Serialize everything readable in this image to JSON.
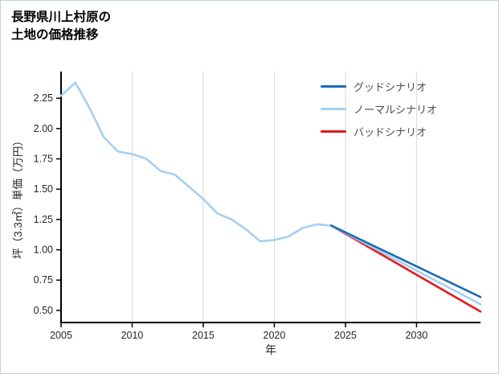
{
  "title": {
    "line1": "長野県川上村原の",
    "line2": "土地の価格推移"
  },
  "chart_data": {
    "type": "line",
    "title": "長野県川上村原の土地の価格推移",
    "xlabel": "年",
    "ylabel": "坪（3.3㎡）単価（万円）",
    "xlim": [
      2005,
      2034.5
    ],
    "ylim": [
      0.4,
      2.47
    ],
    "x_ticks": [
      2005,
      2010,
      2015,
      2020,
      2025,
      2030
    ],
    "y_ticks": [
      0.5,
      0.75,
      1.0,
      1.25,
      1.5,
      1.75,
      2.0,
      2.25
    ],
    "grid": "vertical-only",
    "legend_position": "top-right-inside",
    "colors": {
      "axis": "#000000",
      "grid": "#d9d9d9",
      "tick_label": "#262626",
      "legend_text": "#4d4d4d"
    },
    "series": [
      {
        "name": "グッドシナリオ",
        "color": "#1a6db5",
        "x": [
          2024,
          2034.5
        ],
        "y": [
          1.2,
          0.61
        ]
      },
      {
        "name": "ノーマルシナリオ",
        "color": "#a6cff2",
        "x": [
          2005,
          2006,
          2007,
          2008,
          2009,
          2010,
          2011,
          2012,
          2013,
          2014,
          2015,
          2016,
          2017,
          2018,
          2019,
          2020,
          2021,
          2022,
          2023,
          2024,
          2034.5
        ],
        "y": [
          2.27,
          2.38,
          2.17,
          1.93,
          1.81,
          1.79,
          1.75,
          1.65,
          1.62,
          1.52,
          1.42,
          1.3,
          1.25,
          1.17,
          1.07,
          1.08,
          1.11,
          1.18,
          1.21,
          1.2,
          0.55
        ]
      },
      {
        "name": "バッドシナリオ",
        "color": "#e4181b",
        "x": [
          2024,
          2034.5
        ],
        "y": [
          1.2,
          0.49
        ]
      }
    ]
  }
}
